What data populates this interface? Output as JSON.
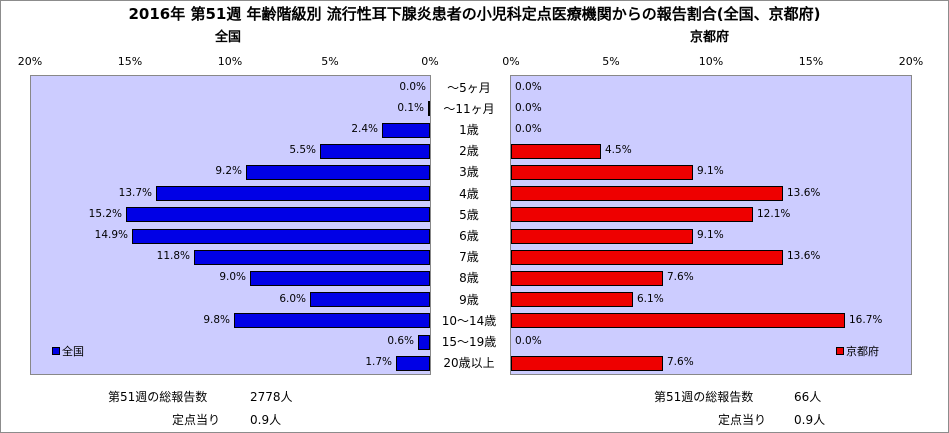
{
  "title": "2016年 第51週 年齢階級別 流行性耳下腺炎患者の小児科定点医療機関からの報告割合(全国、京都府)",
  "left_panel_title": "全国",
  "right_panel_title": "京都府",
  "left_ticks": [
    "20%",
    "15%",
    "10%",
    "5%",
    "0%"
  ],
  "right_ticks": [
    "0%",
    "5%",
    "10%",
    "15%",
    "20%"
  ],
  "colors": {
    "national": "#0000e6",
    "kyoto": "#ee0000",
    "plot_bg": "#ccccff"
  },
  "legend": {
    "national": "全国",
    "kyoto": "京都府"
  },
  "footer": {
    "national_total_label": "第51週の総報告数",
    "national_total_value": "2778人",
    "national_per_label": "定点当り",
    "national_per_value": "0.9人",
    "kyoto_total_label": "第51週の総報告数",
    "kyoto_total_value": "66人",
    "kyoto_per_label": "定点当り",
    "kyoto_per_value": "0.9人"
  },
  "chart_data": {
    "type": "bar",
    "orientation": "horizontal-butterfly",
    "categories": [
      "～5ヶ月",
      "～11ヶ月",
      "1歳",
      "2歳",
      "3歳",
      "4歳",
      "5歳",
      "6歳",
      "7歳",
      "8歳",
      "9歳",
      "10～14歳",
      "15～19歳",
      "20歳以上"
    ],
    "series": [
      {
        "name": "全国",
        "values": [
          0.0,
          0.1,
          2.4,
          5.5,
          9.2,
          13.7,
          15.2,
          14.9,
          11.8,
          9.0,
          6.0,
          9.8,
          0.6,
          1.7
        ],
        "labels": [
          "0.0%",
          "0.1%",
          "2.4%",
          "5.5%",
          "9.2%",
          "13.7%",
          "15.2%",
          "14.9%",
          "11.8%",
          "9.0%",
          "6.0%",
          "9.8%",
          "0.6%",
          "1.7%"
        ]
      },
      {
        "name": "京都府",
        "values": [
          0.0,
          0.0,
          0.0,
          4.5,
          9.1,
          13.6,
          12.1,
          9.1,
          13.6,
          7.6,
          6.1,
          16.7,
          0.0,
          7.6
        ],
        "labels": [
          "0.0%",
          "0.0%",
          "0.0%",
          "4.5%",
          "9.1%",
          "13.6%",
          "12.1%",
          "9.1%",
          "13.6%",
          "7.6%",
          "6.1%",
          "16.7%",
          "0.0%",
          "7.6%"
        ]
      }
    ],
    "xlim": [
      0,
      20
    ],
    "unit": "%",
    "legend_position": "bottom-left / bottom-right"
  }
}
